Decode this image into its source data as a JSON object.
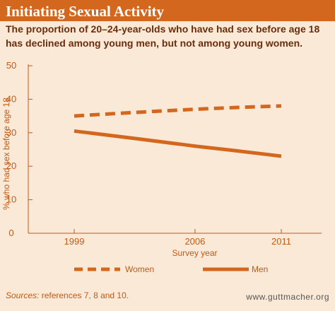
{
  "header": {
    "title": "Initiating Sexual Activity"
  },
  "subtitle_lines": [
    "The proportion of 20–24-year-olds who have had sex before age 18",
    "has declined among young men, but not among young women."
  ],
  "colors": {
    "title_bar": "#d4671e",
    "background": "#fbe9d7",
    "accent": "#d4671e",
    "axis": "#c25a14",
    "subtitle_text": "#6b2d0b",
    "source_text": "#c25a14",
    "url_text": "#555555"
  },
  "chart_data": {
    "type": "line",
    "title": "",
    "xlabel": "Survey year",
    "ylabel": "% who had sex before age 18",
    "x": [
      1999,
      2006,
      2011
    ],
    "x_tick_labels": [
      "1999",
      "2006",
      "2011"
    ],
    "xlim": [
      1999,
      2011
    ],
    "ylim": [
      0,
      50
    ],
    "y_ticks": [
      0,
      10,
      20,
      30,
      40,
      50
    ],
    "grid": false,
    "legend_position": "bottom",
    "series": [
      {
        "name": "Women",
        "values": [
          35,
          37,
          38
        ],
        "style": "dashed",
        "color": "#d4671e"
      },
      {
        "name": "Men",
        "values": [
          30.5,
          26,
          23
        ],
        "style": "solid",
        "color": "#d4671e"
      }
    ]
  },
  "footer": {
    "source_label": "Sources:",
    "source_text": " references 7, 8 and 10.",
    "url": "www.guttmacher.org"
  }
}
